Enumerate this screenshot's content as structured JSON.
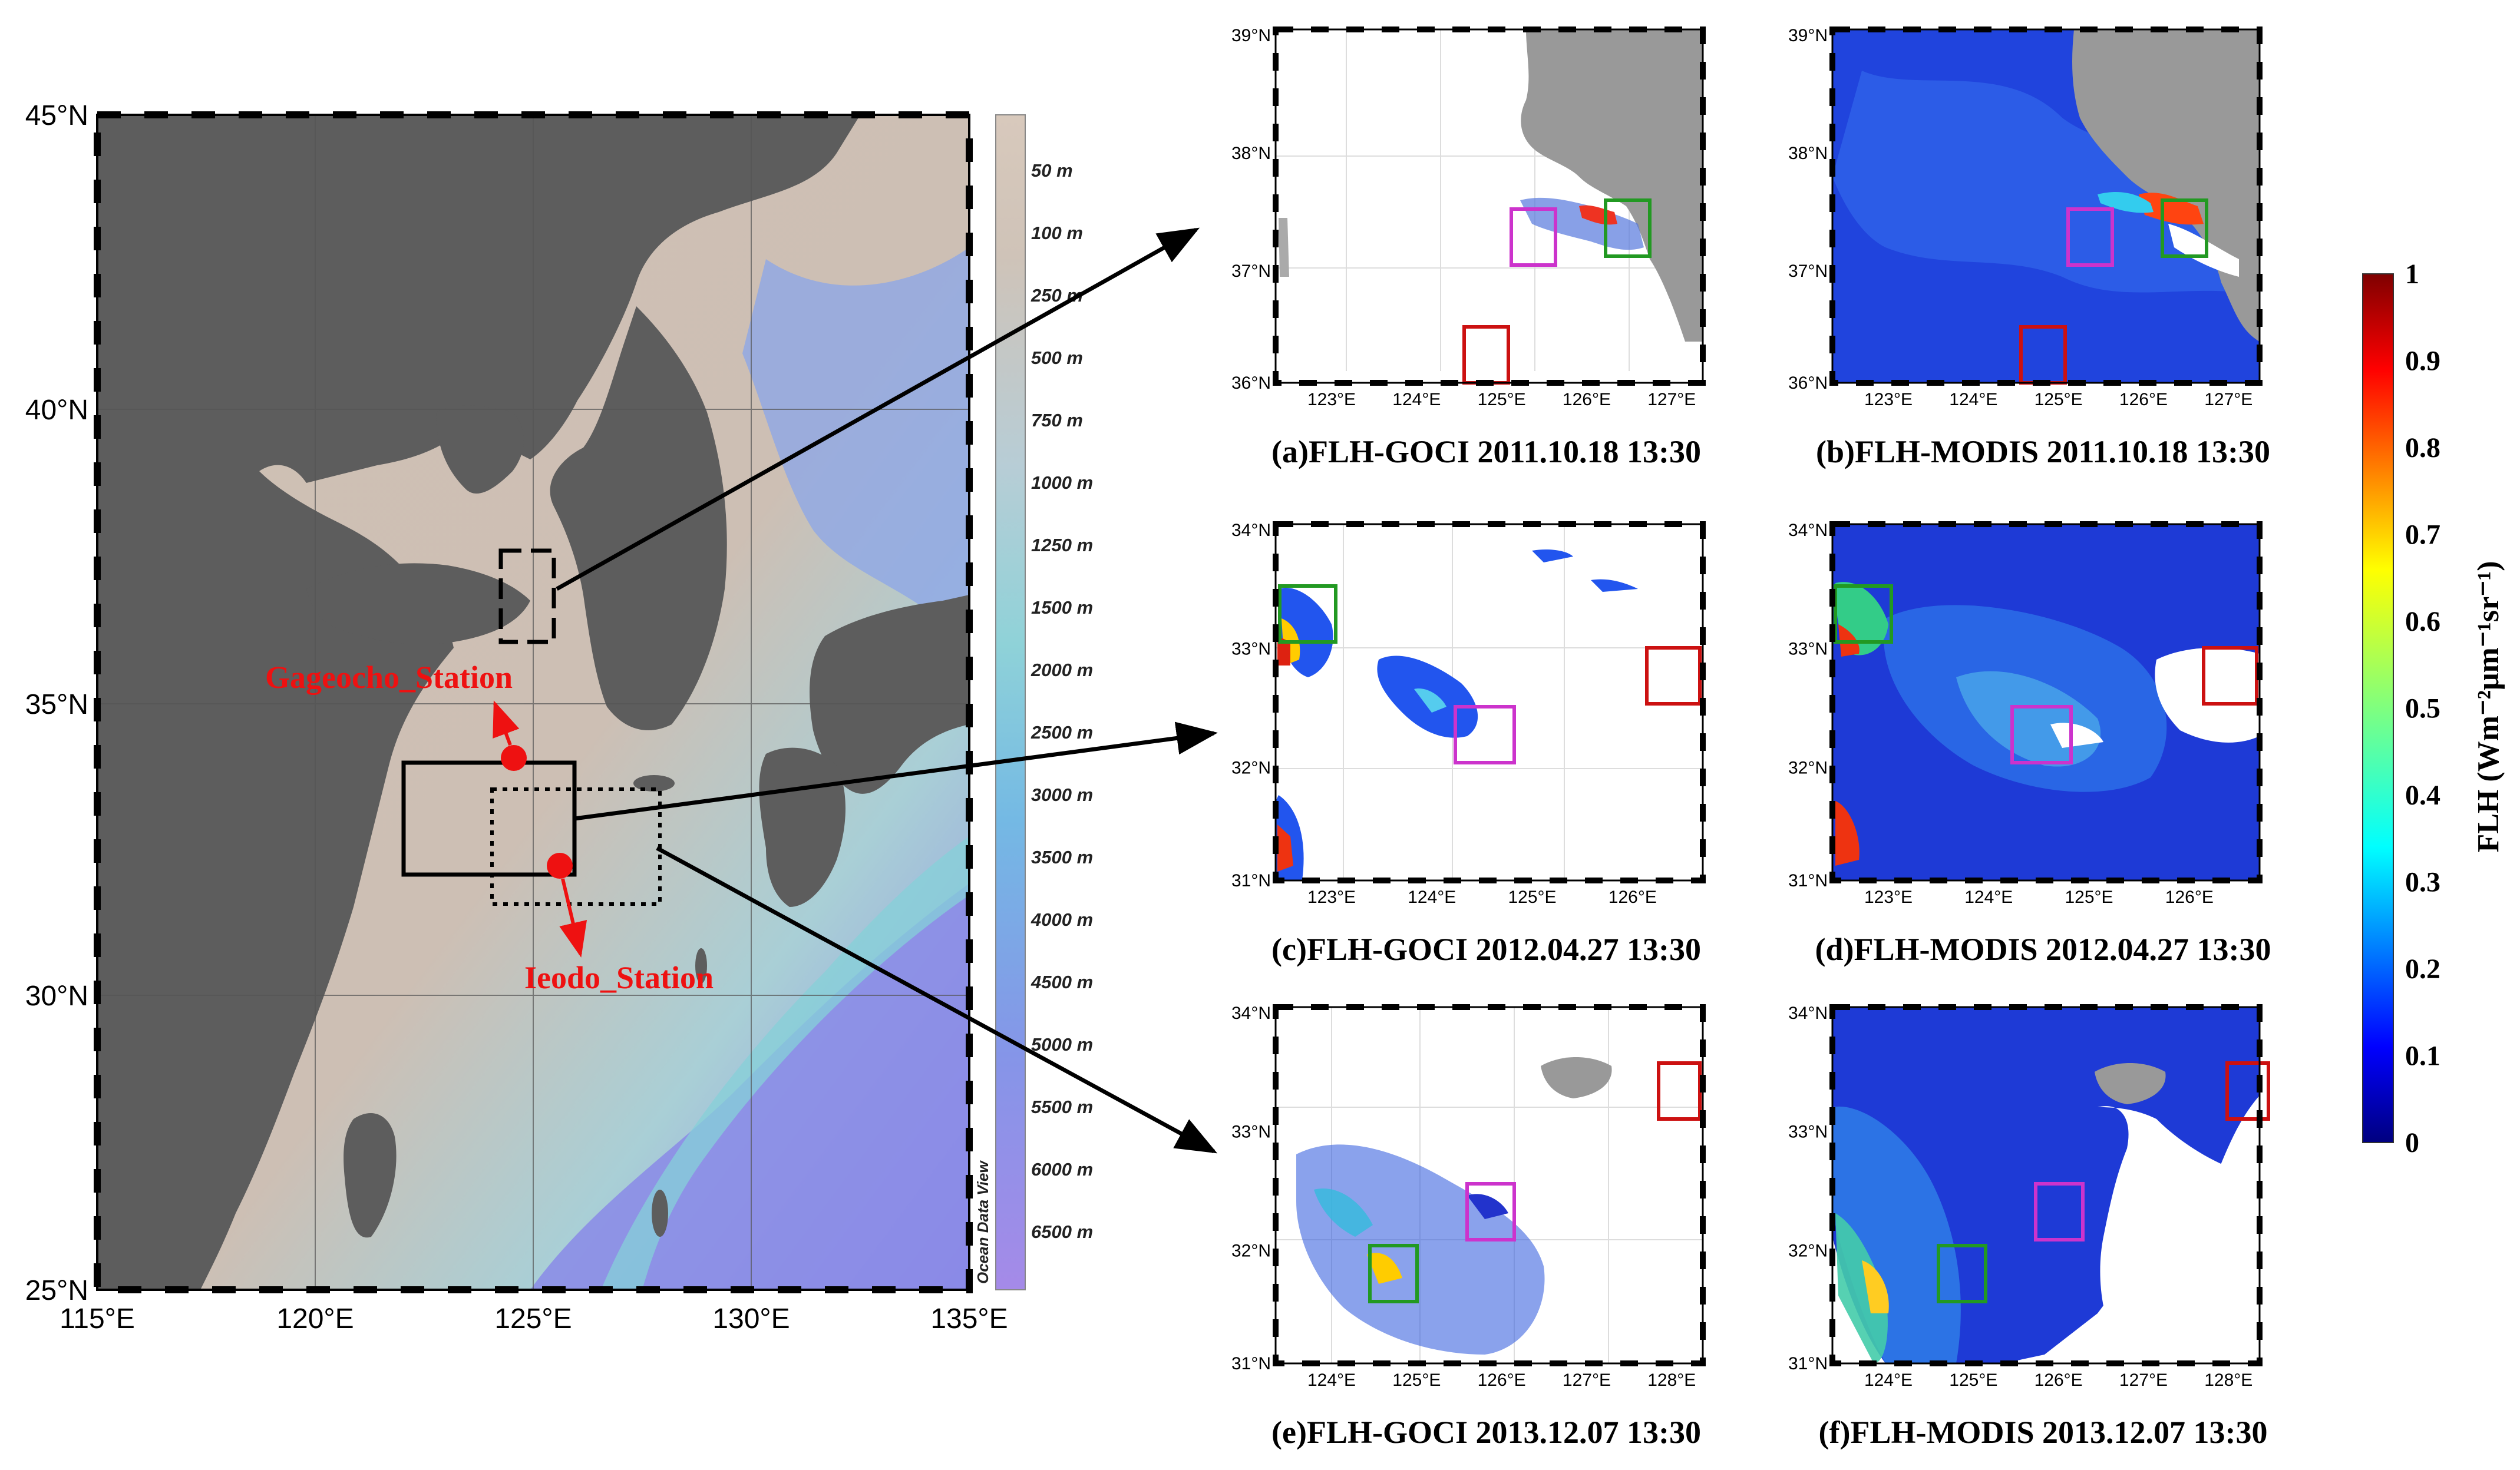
{
  "main_map": {
    "lat_labels": [
      "45°N",
      "40°N",
      "35°N",
      "30°N",
      "25°N"
    ],
    "lon_labels": [
      "115°E",
      "120°E",
      "125°E",
      "130°E",
      "135°E"
    ],
    "depth_scale": [
      "50 m",
      "100 m",
      "250 m",
      "500 m",
      "750 m",
      "1000 m",
      "1250 m",
      "1500 m",
      "2000 m",
      "2500 m",
      "3000 m",
      "3500 m",
      "4000 m",
      "4500 m",
      "5000 m",
      "5500 m",
      "6000 m",
      "6500 m"
    ],
    "watermark": "Ocean Data View",
    "stations": [
      {
        "name": "Gageocho_Station"
      },
      {
        "name": "Ieodo_Station"
      }
    ]
  },
  "panels": [
    {
      "id": "a",
      "caption": "(a)FLH-GOCI 2011.10.18 13:30",
      "lat_labels": [
        "39°N",
        "38°N",
        "37°N",
        "36°N"
      ],
      "lon_labels": [
        "123°E",
        "124°E",
        "125°E",
        "126°E",
        "127°E"
      ]
    },
    {
      "id": "b",
      "caption": "(b)FLH-MODIS 2011.10.18 13:30",
      "lat_labels": [
        "39°N",
        "38°N",
        "37°N",
        "36°N"
      ],
      "lon_labels": [
        "123°E",
        "124°E",
        "125°E",
        "126°E",
        "127°E"
      ]
    },
    {
      "id": "c",
      "caption": "(c)FLH-GOCI 2012.04.27 13:30",
      "lat_labels": [
        "34°N",
        "33°N",
        "32°N",
        "31°N"
      ],
      "lon_labels": [
        "123°E",
        "124°E",
        "125°E",
        "126°E"
      ]
    },
    {
      "id": "d",
      "caption": "(d)FLH-MODIS 2012.04.27 13:30",
      "lat_labels": [
        "34°N",
        "33°N",
        "32°N",
        "31°N"
      ],
      "lon_labels": [
        "123°E",
        "124°E",
        "125°E",
        "126°E"
      ]
    },
    {
      "id": "e",
      "caption": "(e)FLH-GOCI 2013.12.07 13:30",
      "lat_labels": [
        "34°N",
        "33°N",
        "32°N",
        "31°N"
      ],
      "lon_labels": [
        "124°E",
        "125°E",
        "126°E",
        "127°E",
        "128°E"
      ]
    },
    {
      "id": "f",
      "caption": "(f)FLH-MODIS 2013.12.07 13:30",
      "lat_labels": [
        "34°N",
        "33°N",
        "32°N",
        "31°N"
      ],
      "lon_labels": [
        "124°E",
        "125°E",
        "126°E",
        "127°E",
        "128°E"
      ]
    }
  ],
  "colorbar": {
    "ticks": [
      "1",
      "0.9",
      "0.8",
      "0.7",
      "0.6",
      "0.5",
      "0.4",
      "0.3",
      "0.2",
      "0.1",
      "0"
    ],
    "label": "FLH (Wm⁻²μm⁻¹sr⁻¹)"
  },
  "colors": {
    "land": "#5d5d5d",
    "shallow_sea": "#cfc0b3",
    "deep_sea": "#8a8ae8",
    "station": "#ee1111",
    "box_red": "#cc1111",
    "box_magenta": "#cc33cc",
    "box_green": "#229922"
  }
}
